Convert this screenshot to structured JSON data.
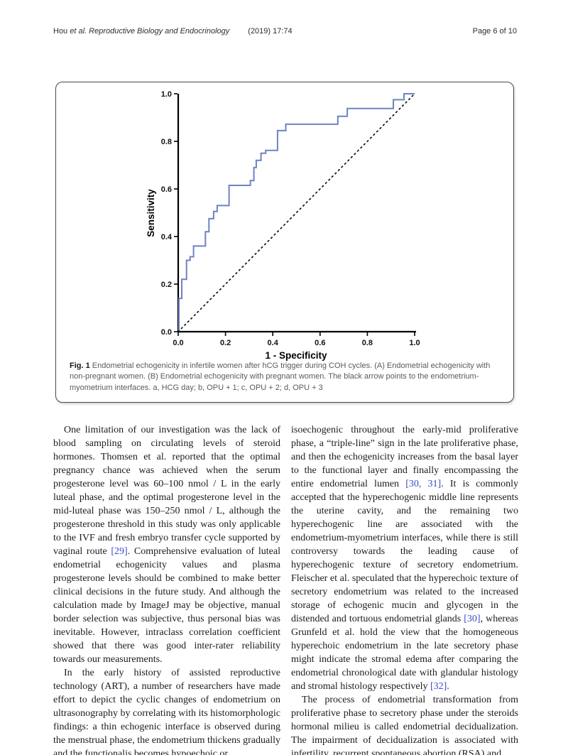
{
  "header": {
    "author": "Hou ",
    "etal_journal": "et al. Reproductive Biology and Endocrinology",
    "citation": "(2019) 17:74",
    "page_label": "Page 6 of 10"
  },
  "figure": {
    "caption_label": "Fig. 1",
    "caption_text": "Endometrial echogenicity in infertile women after hCG trigger during COH cycles. (A) Endometrial echogenicity with non-pregnant women. (B) Endometrial echogenicity with pregnant women. The black arrow points to the endometrium-myometrium interfaces. a, HCG day; b, OPU + 1; c, OPU + 2; d, OPU + 3"
  },
  "chart_data": {
    "type": "line",
    "title": "",
    "xlabel": "1 - Specificity",
    "ylabel": "Sensitivity",
    "xlim": [
      0,
      1
    ],
    "ylim": [
      0,
      1
    ],
    "xticks": [
      "0.0",
      "0.2",
      "0.4",
      "0.6",
      "0.8",
      "1.0"
    ],
    "yticks": [
      "0.0",
      "0.2",
      "0.4",
      "0.6",
      "0.8",
      "1.0"
    ],
    "grid": false,
    "legend": "none",
    "series": [
      {
        "name": "ROC curve",
        "color": "#6f81c2",
        "style": "solid",
        "points": [
          [
            0.003,
            0.0
          ],
          [
            0.003,
            0.14
          ],
          [
            0.015,
            0.14
          ],
          [
            0.015,
            0.22
          ],
          [
            0.035,
            0.22
          ],
          [
            0.035,
            0.3
          ],
          [
            0.05,
            0.3
          ],
          [
            0.05,
            0.315
          ],
          [
            0.065,
            0.315
          ],
          [
            0.065,
            0.36
          ],
          [
            0.115,
            0.36
          ],
          [
            0.115,
            0.42
          ],
          [
            0.13,
            0.42
          ],
          [
            0.13,
            0.475
          ],
          [
            0.15,
            0.475
          ],
          [
            0.15,
            0.505
          ],
          [
            0.165,
            0.505
          ],
          [
            0.165,
            0.53
          ],
          [
            0.215,
            0.53
          ],
          [
            0.215,
            0.615
          ],
          [
            0.305,
            0.615
          ],
          [
            0.305,
            0.635
          ],
          [
            0.32,
            0.635
          ],
          [
            0.32,
            0.69
          ],
          [
            0.33,
            0.69
          ],
          [
            0.33,
            0.72
          ],
          [
            0.35,
            0.72
          ],
          [
            0.35,
            0.75
          ],
          [
            0.37,
            0.75
          ],
          [
            0.37,
            0.762
          ],
          [
            0.42,
            0.762
          ],
          [
            0.42,
            0.845
          ],
          [
            0.455,
            0.845
          ],
          [
            0.455,
            0.872
          ],
          [
            0.675,
            0.872
          ],
          [
            0.675,
            0.905
          ],
          [
            0.715,
            0.905
          ],
          [
            0.715,
            0.938
          ],
          [
            0.91,
            0.938
          ],
          [
            0.91,
            0.975
          ],
          [
            0.955,
            0.975
          ],
          [
            0.955,
            1.0
          ],
          [
            1.0,
            1.0
          ]
        ]
      },
      {
        "name": "reference diagonal",
        "color": "#101010",
        "style": "dotted",
        "points": [
          [
            0.0,
            0.0
          ],
          [
            1.0,
            1.0
          ]
        ]
      }
    ]
  },
  "body": {
    "columns": [
      {
        "paragraphs": [
          {
            "indent": true,
            "runs": [
              {
                "text": "One limitation of our investigation was the lack of blood sampling on circulating levels of steroid hormones. Thomsen et al. reported that the optimal pregnancy chance was achieved when the serum progesterone level was 60–100 nmol / L in the early luteal phase, and the optimal progesterone level in the mid-luteal phase was 150–250 nmol / L, although the progesterone threshold in this study was only applicable to the IVF and fresh embryo transfer cycle supported by vaginal route "
              },
              {
                "text": "[29]",
                "link": true
              },
              {
                "text": ". Comprehensive evaluation of luteal endometrial echogenicity values and plasma progesterone levels should be combined to make better clinical decisions in the future study. And although the calculation made by ImageJ may be objective, manual border selection was subjective, thus personal bias was inevitable. However, intraclass correlation coefficient showed that there was good inter-rater reliability towards our measurements."
              }
            ]
          },
          {
            "indent": true,
            "runs": [
              {
                "text": "In the early history of assisted reproductive technology (ART), a number of researchers have made effort to depict the cyclic changes of endometrium on ultrasonography by correlating with its histomorphologic findings: a thin echogenic interface is observed during the menstrual phase, the endometrium thickens gradually and the functionalis becomes hypoechoic or"
              }
            ]
          }
        ]
      },
      {
        "paragraphs": [
          {
            "indent": false,
            "runs": [
              {
                "text": "isoechogenic throughout the early-mid proliferative phase, a “triple-line” sign in the late proliferative phase, and then the echogenicity increases from the basal layer to the functional layer and finally encompassing the entire endometrial lumen "
              },
              {
                "text": "[30, 31]",
                "link": true
              },
              {
                "text": ". It is commonly accepted that the hyperechogenic middle line represents the uterine cavity, and the remaining two hyperechogenic line are associated with the endometrium-myometrium interfaces, while there is still controversy towards the leading cause of hyperechogenic texture of secretory endometrium. Fleischer et al. speculated that the hyperechoic texture of secretory endometrium was related to the increased storage of echogenic mucin and glycogen in the distended and tortuous endometrial glands "
              },
              {
                "text": "[30]",
                "link": true
              },
              {
                "text": ", whereas Grunfeld et al. hold the view that the homogeneous hyperechoic endometrium in the late secretory phase might indicate the stromal edema after comparing the endometrial chronological date with glandular histology and stromal histology respectively "
              },
              {
                "text": "[32]",
                "link": true
              },
              {
                "text": "."
              }
            ]
          },
          {
            "indent": true,
            "runs": [
              {
                "text": "The process of endometrial transformation from proliferative phase to secretory phase under the steroids hormonal milieu is called endometrial decidualization. The impairment of decidualization is associated with infertility, recurrent spontaneous abortion (RSA) and"
              }
            ]
          }
        ]
      }
    ]
  }
}
